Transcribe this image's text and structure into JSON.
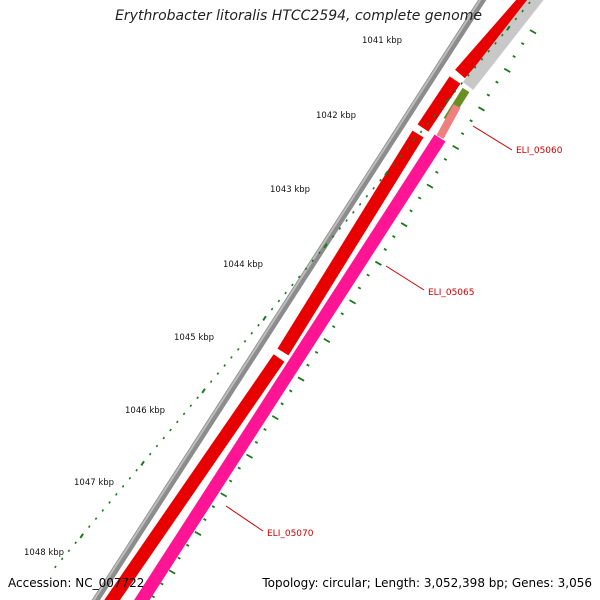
{
  "title": "Erythrobacter litoralis HTCC2594, complete genome",
  "footer": {
    "accession": "Accession: NC_007722",
    "summary": "Topology: circular; Length: 3,052,398 bp; Genes: 3,056"
  },
  "scale": {
    "ticks": [
      "1041 kbp",
      "1042 kbp",
      "1043 kbp",
      "1044 kbp",
      "1045 kbp",
      "1046 kbp",
      "1047 kbp",
      "1048 kbp"
    ]
  },
  "genes": [
    {
      "label": "ELI_05060",
      "color": "#cc0000"
    },
    {
      "label": "ELI_05065",
      "color": "#cc0000"
    },
    {
      "label": "ELI_05070",
      "color": "#cc0000"
    }
  ],
  "colors": {
    "backbone": "#8a8a8a",
    "forward_cds": "#ee0000",
    "reverse_cds": "#ff1493",
    "gray_feature": "#c8c8c8",
    "salmon_feature": "#f08080",
    "olive_feature": "#6b8e23",
    "tick_green": "#1a7a1a"
  }
}
